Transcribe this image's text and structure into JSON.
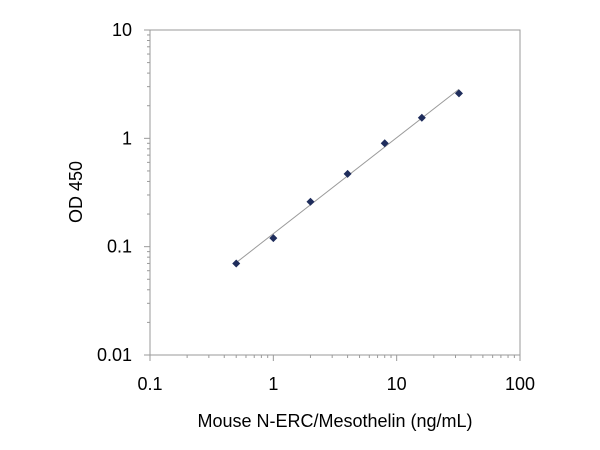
{
  "chart_data": {
    "type": "scatter",
    "title": "",
    "xlabel": "Mouse N-ERC/Mesothelin (ng/mL)",
    "ylabel": "OD 450",
    "x_scale": "log",
    "y_scale": "log",
    "xlim": [
      0.1,
      100
    ],
    "ylim": [
      0.01,
      10
    ],
    "x_ticks": [
      0.1,
      1,
      10,
      100
    ],
    "x_tick_labels": [
      "0.1",
      "1",
      "10",
      "100"
    ],
    "y_ticks": [
      0.01,
      0.1,
      1,
      10
    ],
    "y_tick_labels": [
      "0.01",
      "0.1",
      "1",
      "10"
    ],
    "grid": false,
    "trendline": true,
    "series": [
      {
        "x": [
          0.5,
          1,
          2,
          4,
          8,
          16,
          32
        ],
        "y": [
          0.07,
          0.12,
          0.26,
          0.47,
          0.9,
          1.55,
          2.6
        ]
      }
    ],
    "colors": {
      "marker": "#1f2d5c",
      "trendline": "#9a9a9a",
      "frame": "#9a9a9a"
    }
  }
}
